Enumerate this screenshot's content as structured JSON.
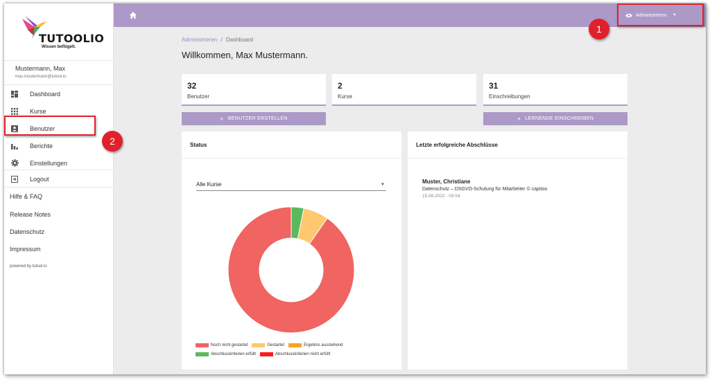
{
  "sidebar": {
    "brand": "TUTOOLIO",
    "tagline": "Wissen beflügelt.",
    "user_name": "Mustermann, Max",
    "user_email": "max.mustermann@tutool.io",
    "nav": [
      {
        "label": "Dashboard",
        "icon": "dashboard-icon"
      },
      {
        "label": "Kurse",
        "icon": "apps-grid-icon"
      },
      {
        "label": "Benutzer",
        "icon": "user-card-icon"
      },
      {
        "label": "Berichte",
        "icon": "bar-chart-icon"
      },
      {
        "label": "Einstellungen",
        "icon": "gear-icon"
      },
      {
        "label": "Logout",
        "icon": "logout-icon"
      }
    ],
    "links": [
      "Hilfe & FAQ",
      "Release Notes",
      "Datenschutz",
      "Impressum"
    ],
    "powered_by": "powered by tutool.io"
  },
  "topbar": {
    "admin_label": "Administrieren",
    "home_icon": "home-icon",
    "accent": "#ad99c8"
  },
  "breadcrumb": {
    "parent": "Administrieren",
    "separator": "/",
    "current": "Dashboard"
  },
  "welcome": "Willkommen, Max Mustermann.",
  "stats": [
    {
      "value": "32",
      "label": "Benutzer"
    },
    {
      "value": "2",
      "label": "Kurse"
    },
    {
      "value": "31",
      "label": "Einschreibungen"
    }
  ],
  "actions": {
    "create_user": "BENUTZER ERSTELLEN",
    "enroll": "LERNENDE EINSCHREIBEN"
  },
  "status_panel": {
    "title": "Status",
    "course_filter": "Alle Kurse"
  },
  "completions_panel": {
    "title": "Letzte erfolgreiche Abschlüsse",
    "entries": [
      {
        "name": "Muster, Christiane",
        "course": "Datenschutz – DSGVO-Schulung für Mitarbeiter © capitoo",
        "date": "15.08.2022 - 09:54"
      }
    ]
  },
  "callouts": [
    "1",
    "2"
  ],
  "chart_data": {
    "type": "pie",
    "donut": true,
    "categories": [
      "Noch nicht gestartet",
      "Gestartet",
      "Ergebnis ausstehend",
      "Abschlusskriterien erfüllt",
      "Abschlusskriterien nicht erfüllt"
    ],
    "values": [
      28,
      2,
      0,
      1,
      0
    ],
    "colors": [
      "#f06461",
      "#ffc870",
      "#f5a623",
      "#5cb85c",
      "#ff1a1a"
    ],
    "legend": "bottom"
  }
}
